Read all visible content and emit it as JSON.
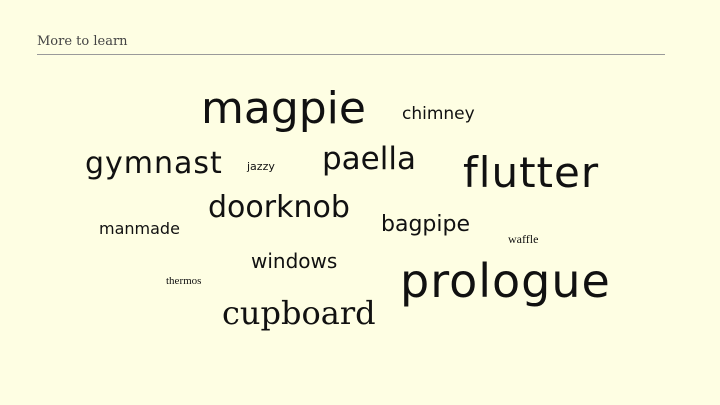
{
  "header": {
    "title": "More to learn"
  },
  "words": {
    "magpie": "magpie",
    "chimney": "chimney",
    "gymnast": "gymnast",
    "jazzy": "jazzy",
    "paella": "paella",
    "flutter": "flutter",
    "doorknob": "doorknob",
    "manmade": "manmade",
    "bagpipe": "bagpipe",
    "waffle": "waffle",
    "windows": "windows",
    "thermos": "thermos",
    "prologue": "prologue",
    "cupboard": "cupboard"
  },
  "colors": {
    "background": "#fefee3",
    "text": "#111111",
    "rule": "#9a9a9a"
  }
}
